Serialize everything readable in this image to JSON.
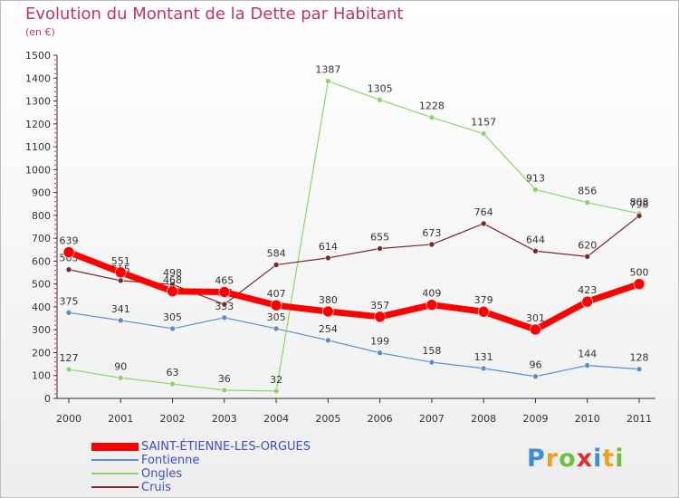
{
  "title": "Evolution du Montant de la Dette par Habitant",
  "unit": "(en €)",
  "logo": {
    "letters": [
      "P",
      "r",
      "o",
      "x",
      "i",
      "t",
      "i"
    ],
    "colors": [
      "#3a8fd8",
      "#f0a020",
      "#6fbf40",
      "#e03030",
      "#3a8fd8",
      "#f0a020",
      "#6fbf40"
    ]
  },
  "chart_data": {
    "type": "line",
    "title": "Evolution du Montant de la Dette par Habitant",
    "ylabel": "(en €)",
    "x": [
      "2000",
      "2001",
      "2002",
      "2003",
      "2004",
      "2005",
      "2006",
      "2007",
      "2008",
      "2009",
      "2010",
      "2011"
    ],
    "ylim": [
      0,
      1500
    ],
    "yticks": [
      0,
      100,
      200,
      300,
      400,
      500,
      600,
      700,
      800,
      900,
      1000,
      1100,
      1200,
      1300,
      1400,
      1500
    ],
    "grid": false,
    "legend_position": "bottom-left",
    "series": [
      {
        "name": "Fontienne",
        "color": "#5b8ec8",
        "values": [
          375,
          341,
          305,
          353,
          305,
          254,
          199,
          158,
          131,
          96,
          144,
          128
        ]
      },
      {
        "name": "Ongles",
        "color": "#8fd46a",
        "values": [
          127,
          90,
          63,
          36,
          32,
          1387,
          1305,
          1228,
          1157,
          913,
          856,
          808
        ]
      },
      {
        "name": "Cruis",
        "color": "#7a2a2a",
        "values": [
          563,
          515,
          498,
          411,
          584,
          614,
          655,
          673,
          764,
          644,
          620,
          798
        ]
      },
      {
        "name": "SAINT-ÉTIENNE-LES-ORGUES",
        "color": "#ff0000",
        "values": [
          639,
          551,
          468,
          465,
          407,
          380,
          357,
          409,
          379,
          301,
          423,
          500
        ]
      }
    ]
  }
}
